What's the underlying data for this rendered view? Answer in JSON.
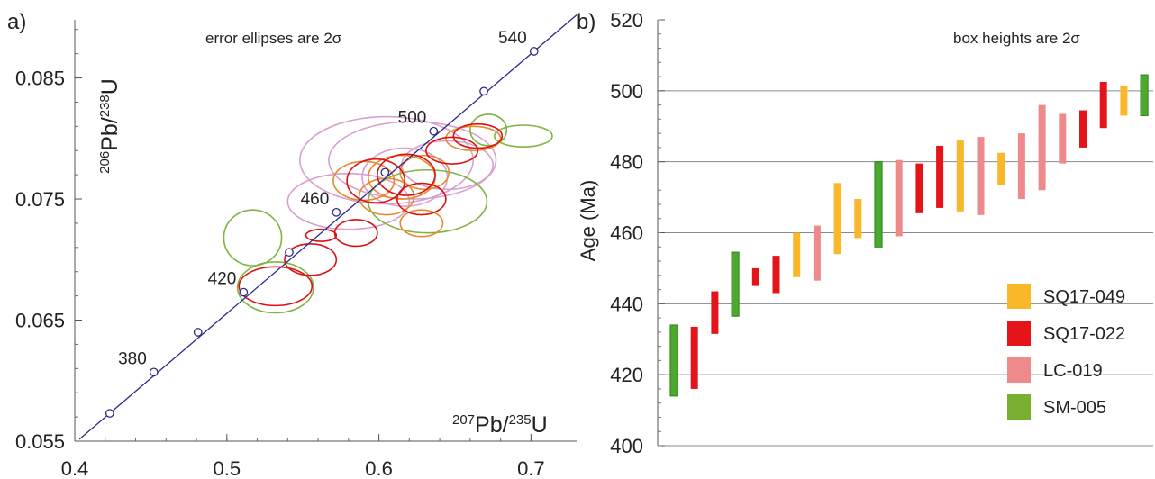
{
  "chart_data": [
    {
      "type": "scatter",
      "panel_label": "a)",
      "annotation": "error ellipses are 2σ",
      "xlabel": {
        "base1": "207",
        "mid1": "Pb/",
        "base2": "235",
        "tail": "U"
      },
      "ylabel": {
        "base1": "206",
        "mid1": "Pb/",
        "base2": "238",
        "tail": "U"
      },
      "xlim": [
        0.4,
        0.73
      ],
      "ylim": [
        0.055,
        0.0898
      ],
      "xticks": [
        "0.4",
        "0.5",
        "0.6",
        "0.7"
      ],
      "xtick_values": [
        0.4,
        0.5,
        0.6,
        0.7
      ],
      "yticks": [
        "0.055",
        "0.065",
        "0.075",
        "0.085"
      ],
      "ytick_values": [
        0.055,
        0.065,
        0.075,
        0.085
      ],
      "concordia_color": "#2c2a8c",
      "concordia_points": [
        {
          "x": 0.423,
          "y": 0.0573,
          "label": ""
        },
        {
          "x": 0.452,
          "y": 0.0607,
          "label": "380"
        },
        {
          "x": 0.481,
          "y": 0.064,
          "label": ""
        },
        {
          "x": 0.511,
          "y": 0.0673,
          "label": "420"
        },
        {
          "x": 0.541,
          "y": 0.0706,
          "label": ""
        },
        {
          "x": 0.572,
          "y": 0.0739,
          "label": "460"
        },
        {
          "x": 0.604,
          "y": 0.0772,
          "label": ""
        },
        {
          "x": 0.636,
          "y": 0.0806,
          "label": "500"
        },
        {
          "x": 0.669,
          "y": 0.0839,
          "label": ""
        },
        {
          "x": 0.702,
          "y": 0.0872,
          "label": "540"
        }
      ],
      "ellipses": [
        {
          "cx": 0.605,
          "cy": 0.0782,
          "rx": 0.057,
          "ry": 0.0036,
          "color": "#d9a0cf"
        },
        {
          "cx": 0.622,
          "cy": 0.0782,
          "rx": 0.055,
          "ry": 0.0032,
          "color": "#d9a0cf"
        },
        {
          "cx": 0.58,
          "cy": 0.0748,
          "rx": 0.04,
          "ry": 0.0023,
          "color": "#d9a0cf"
        },
        {
          "cx": 0.617,
          "cy": 0.0768,
          "rx": 0.028,
          "ry": 0.0024,
          "color": "#d9a0cf"
        },
        {
          "cx": 0.645,
          "cy": 0.0778,
          "rx": 0.03,
          "ry": 0.002,
          "color": "#d9a0cf"
        },
        {
          "cx": 0.632,
          "cy": 0.0748,
          "rx": 0.039,
          "ry": 0.0026,
          "color": "#7fb443"
        },
        {
          "cx": 0.517,
          "cy": 0.0718,
          "rx": 0.019,
          "ry": 0.0023,
          "color": "#7fb443"
        },
        {
          "cx": 0.532,
          "cy": 0.0677,
          "rx": 0.025,
          "ry": 0.0021,
          "color": "#7fb443"
        },
        {
          "cx": 0.672,
          "cy": 0.0807,
          "rx": 0.012,
          "ry": 0.0013,
          "color": "#7fb443"
        },
        {
          "cx": 0.695,
          "cy": 0.0802,
          "rx": 0.019,
          "ry": 0.0009,
          "color": "#7fb443"
        },
        {
          "cx": 0.59,
          "cy": 0.0765,
          "rx": 0.02,
          "ry": 0.0016,
          "color": "#e58a2e"
        },
        {
          "cx": 0.615,
          "cy": 0.0768,
          "rx": 0.022,
          "ry": 0.0018,
          "color": "#e58a2e"
        },
        {
          "cx": 0.605,
          "cy": 0.0752,
          "rx": 0.018,
          "ry": 0.0015,
          "color": "#e58a2e"
        },
        {
          "cx": 0.63,
          "cy": 0.0772,
          "rx": 0.016,
          "ry": 0.0014,
          "color": "#e58a2e"
        },
        {
          "cx": 0.628,
          "cy": 0.073,
          "rx": 0.014,
          "ry": 0.0011,
          "color": "#e58a2e"
        },
        {
          "cx": 0.662,
          "cy": 0.08,
          "rx": 0.018,
          "ry": 0.001,
          "color": "#e58a2e"
        },
        {
          "cx": 0.532,
          "cy": 0.0678,
          "rx": 0.024,
          "ry": 0.0016,
          "color": "#dd1111"
        },
        {
          "cx": 0.555,
          "cy": 0.07,
          "rx": 0.017,
          "ry": 0.0013,
          "color": "#dd1111"
        },
        {
          "cx": 0.562,
          "cy": 0.072,
          "rx": 0.01,
          "ry": 0.0005,
          "color": "#dd1111"
        },
        {
          "cx": 0.585,
          "cy": 0.0722,
          "rx": 0.014,
          "ry": 0.0011,
          "color": "#dd1111"
        },
        {
          "cx": 0.598,
          "cy": 0.0765,
          "rx": 0.019,
          "ry": 0.0018,
          "color": "#dd1111"
        },
        {
          "cx": 0.618,
          "cy": 0.077,
          "rx": 0.019,
          "ry": 0.0017,
          "color": "#dd1111"
        },
        {
          "cx": 0.628,
          "cy": 0.075,
          "rx": 0.016,
          "ry": 0.0013,
          "color": "#dd1111"
        },
        {
          "cx": 0.648,
          "cy": 0.079,
          "rx": 0.017,
          "ry": 0.0011,
          "color": "#dd1111"
        },
        {
          "cx": 0.665,
          "cy": 0.0802,
          "rx": 0.016,
          "ry": 0.001,
          "color": "#dd1111"
        }
      ]
    },
    {
      "type": "bar",
      "subtype": "range",
      "panel_label": "b)",
      "annotation": "box heights are 2σ",
      "ylabel": "Age (Ma)",
      "ylim": [
        400,
        520
      ],
      "yticks": [
        "400",
        "420",
        "440",
        "460",
        "480",
        "500",
        "520"
      ],
      "ytick_values": [
        400,
        420,
        440,
        460,
        480,
        500,
        520
      ],
      "grid": "horizontal",
      "legend": [
        {
          "name": "SQ17-049",
          "color": "#f9b72a"
        },
        {
          "name": "SQ17-022",
          "color": "#e3151b"
        },
        {
          "name": "LC-019",
          "color": "#ef8a8c"
        },
        {
          "name": "SM-005",
          "color": "#7ab032"
        }
      ],
      "colors": {
        "SQ17-049": "#f9b72a",
        "SQ17-022": "#e3151b",
        "LC-019": "#ef8a8c",
        "SM-005": "#4ea82e",
        "SM-005-edge": "#2f8f2a"
      },
      "boxes": [
        {
          "sample": "SM-005",
          "low": 414,
          "high": 434
        },
        {
          "sample": "SQ17-022",
          "low": 416,
          "high": 433.5
        },
        {
          "sample": "SQ17-022",
          "low": 431.5,
          "high": 443.5
        },
        {
          "sample": "SM-005",
          "low": 436.5,
          "high": 454.5
        },
        {
          "sample": "SQ17-022",
          "low": 445,
          "high": 450
        },
        {
          "sample": "SQ17-022",
          "low": 443,
          "high": 453.5
        },
        {
          "sample": "SQ17-049",
          "low": 447.5,
          "high": 460
        },
        {
          "sample": "LC-019",
          "low": 446.5,
          "high": 462
        },
        {
          "sample": "SQ17-049",
          "low": 454,
          "high": 474
        },
        {
          "sample": "SQ17-049",
          "low": 458.5,
          "high": 469.5
        },
        {
          "sample": "SM-005",
          "low": 456,
          "high": 480
        },
        {
          "sample": "LC-019",
          "low": 459,
          "high": 480.5
        },
        {
          "sample": "SQ17-022",
          "low": 465.5,
          "high": 479.5
        },
        {
          "sample": "SQ17-022",
          "low": 467,
          "high": 484.5
        },
        {
          "sample": "SQ17-049",
          "low": 466,
          "high": 486
        },
        {
          "sample": "LC-019",
          "low": 465,
          "high": 487
        },
        {
          "sample": "SQ17-049",
          "low": 473.5,
          "high": 482.5
        },
        {
          "sample": "LC-019",
          "low": 469.5,
          "high": 488
        },
        {
          "sample": "LC-019",
          "low": 472,
          "high": 496
        },
        {
          "sample": "LC-019",
          "low": 479.5,
          "high": 493.5
        },
        {
          "sample": "SQ17-022",
          "low": 484,
          "high": 494.5
        },
        {
          "sample": "SQ17-022",
          "low": 489.5,
          "high": 502.5
        },
        {
          "sample": "SQ17-049",
          "low": 493,
          "high": 501.5
        },
        {
          "sample": "SM-005",
          "low": 493,
          "high": 504.5
        }
      ]
    }
  ]
}
